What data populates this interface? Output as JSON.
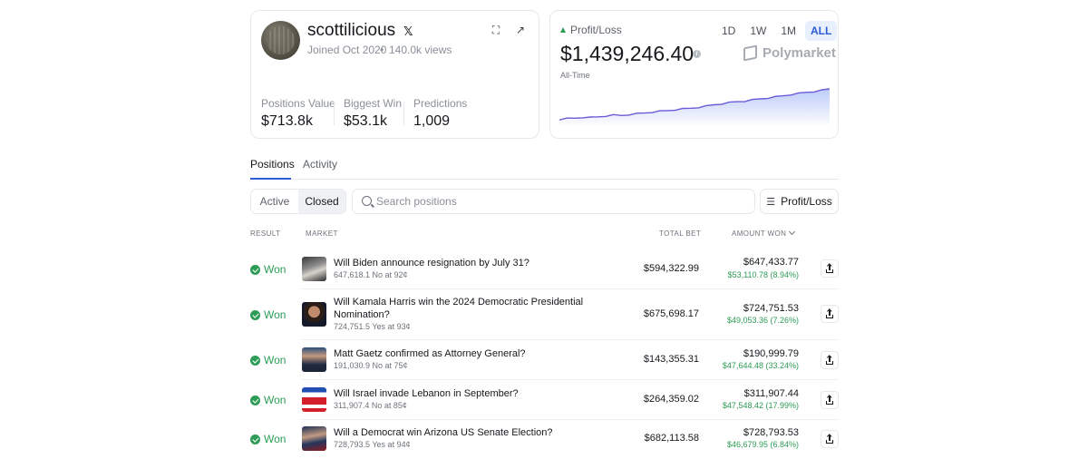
{
  "profile": {
    "username": "scottilicious",
    "joined": "Joined Oct 2020",
    "separator": "•",
    "views": "140.0k views",
    "stats": [
      {
        "label": "Positions Value",
        "value": "$713.8k"
      },
      {
        "label": "Biggest Win",
        "value": "$53.1k"
      },
      {
        "label": "Predictions",
        "value": "1,009"
      }
    ],
    "social_icon": "x-icon"
  },
  "pnl": {
    "label": "Profit/Loss",
    "value": "$1,439,246.40",
    "period_label": "All-Time",
    "ranges": [
      "1D",
      "1W",
      "1M",
      "ALL"
    ],
    "active_range": "ALL",
    "brand": "Polymarket",
    "accent": "#2e5bd8",
    "line_color": "#6b5bd8",
    "chart_points": [
      0.12,
      0.14,
      0.15,
      0.18,
      0.17,
      0.19,
      0.22,
      0.24,
      0.23,
      0.26,
      0.28,
      0.3,
      0.33,
      0.35,
      0.37,
      0.4,
      0.42,
      0.44,
      0.47,
      0.5,
      0.54,
      0.57,
      0.6,
      0.63,
      0.65,
      0.68,
      0.71,
      0.74,
      0.77,
      0.8,
      0.84,
      0.87,
      0.9,
      0.93,
      0.96,
      1.0
    ]
  },
  "tabs": [
    {
      "label": "Positions",
      "active": true
    },
    {
      "label": "Activity",
      "active": false
    }
  ],
  "filters": {
    "segments": [
      {
        "label": "Active",
        "active": false
      },
      {
        "label": "Closed",
        "active": true
      }
    ],
    "search_placeholder": "Search positions",
    "sort_label": "Profit/Loss"
  },
  "columns": {
    "result": "RESULT",
    "market": "MARKET",
    "total_bet": "TOTAL BET",
    "amount_won": "AMOUNT WON"
  },
  "positions": [
    {
      "result": "Won",
      "title": "Will Biden announce resignation by July 31?",
      "sub": "647,618.1 No at 92¢",
      "total": "$594,322.99",
      "amount": "$647,433.77",
      "gain": "$53,110.78 (8.94%)"
    },
    {
      "result": "Won",
      "title": "Will Kamala Harris win the 2024 Democratic Presidential Nomination?",
      "sub": "724,751.5 Yes at 93¢",
      "total": "$675,698.17",
      "amount": "$724,751.53",
      "gain": "$49,053.36 (7.26%)"
    },
    {
      "result": "Won",
      "title": "Matt Gaetz confirmed as Attorney General?",
      "sub": "191,030.9 No at 75¢",
      "total": "$143,355.31",
      "amount": "$190,999.79",
      "gain": "$47,644.48 (33.24%)"
    },
    {
      "result": "Won",
      "title": "Will Israel invade Lebanon in September?",
      "sub": "311,907.4 No at 85¢",
      "total": "$264,359.02",
      "amount": "$311,907.44",
      "gain": "$47,548.42 (17.99%)"
    },
    {
      "result": "Won",
      "title": "Will a Democrat win Arizona US Senate Election?",
      "sub": "728,793.5 Yes at 94¢",
      "total": "$682,113.58",
      "amount": "$728,793.53",
      "gain": "$46,679.95 (6.84%)"
    }
  ]
}
